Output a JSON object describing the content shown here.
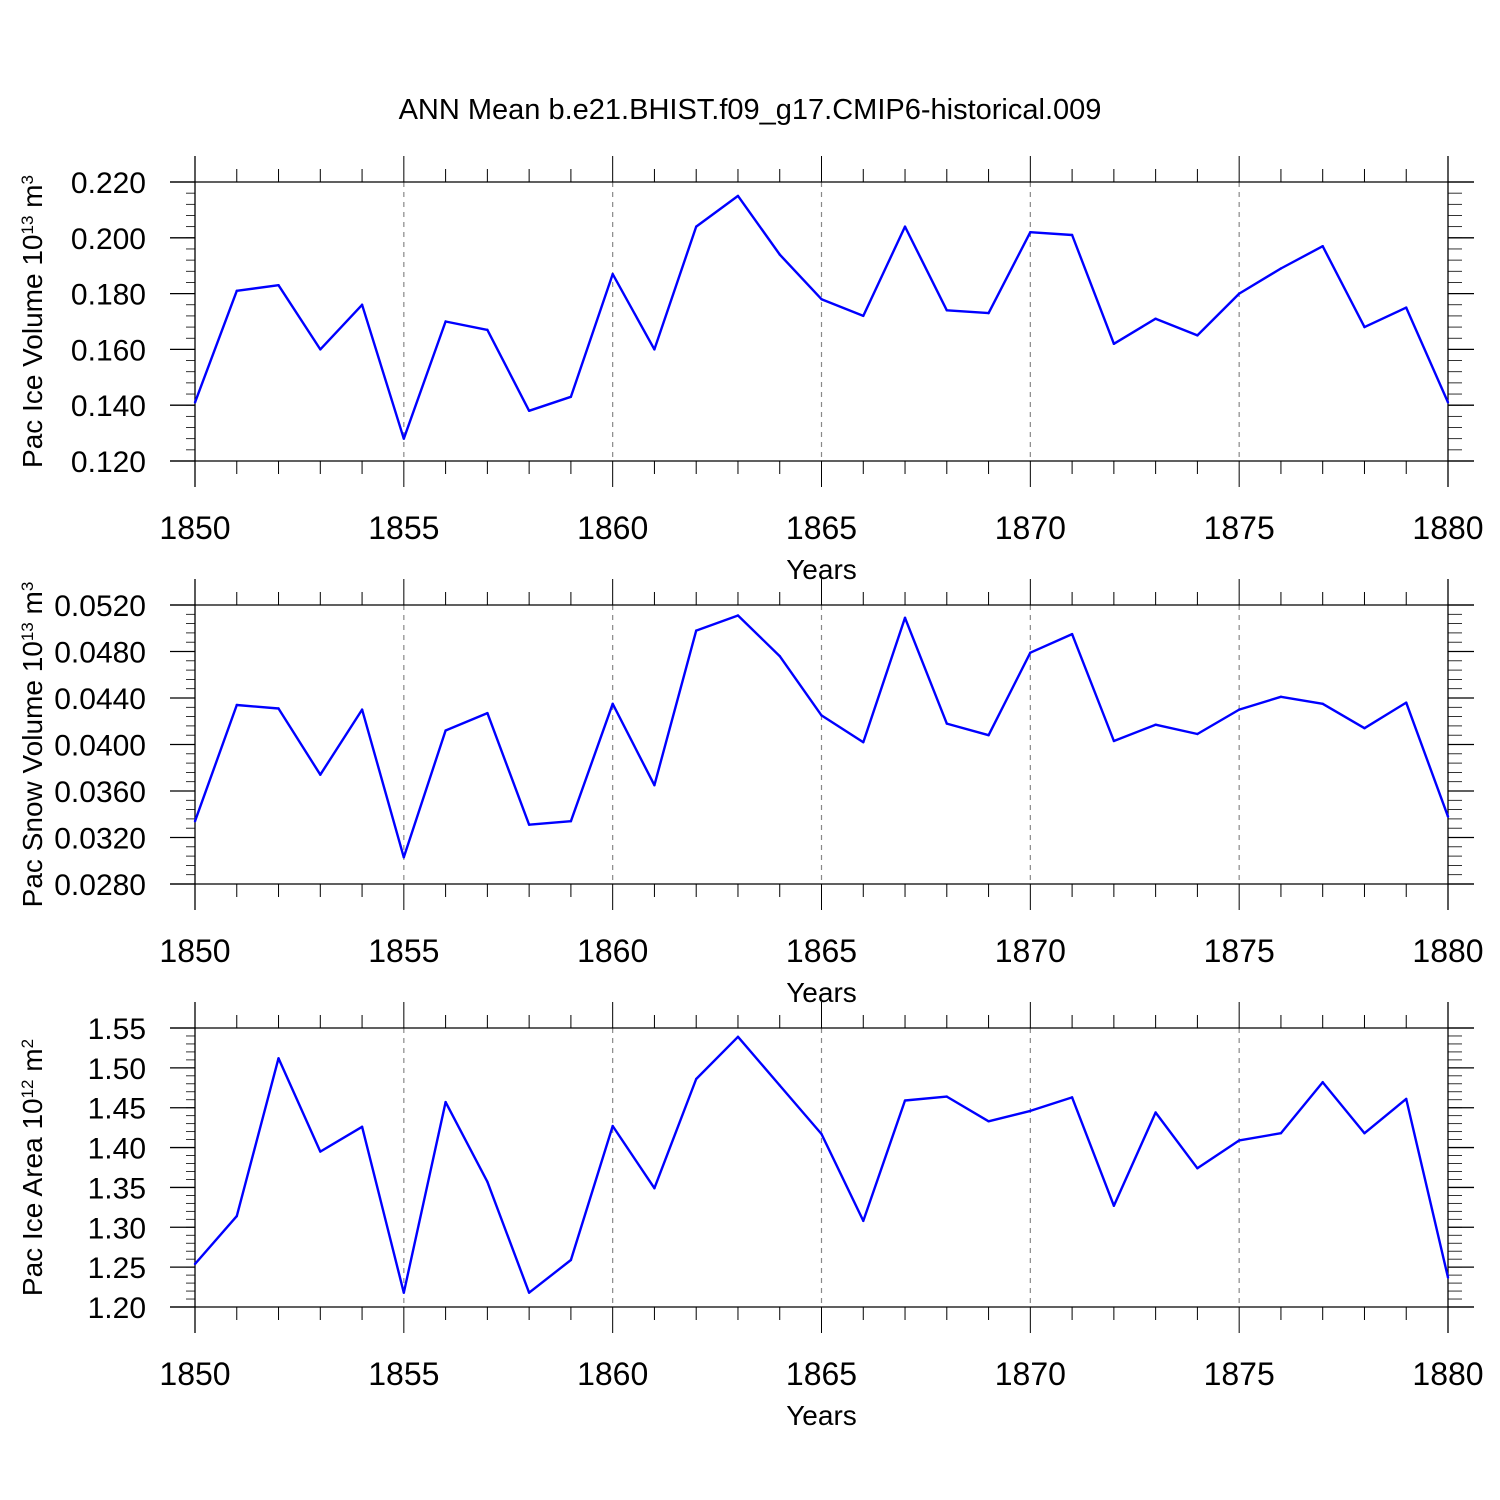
{
  "title": "ANN Mean b.e21.BHIST.f09_g17.CMIP6-historical.009",
  "colors": {
    "line": "#0000ff",
    "axis": "#000000",
    "grid": "#888888"
  },
  "chart_data": [
    {
      "type": "line",
      "series_name": "Pac Ice Volume",
      "ylabel": {
        "text": "Pac Ice Volume 10",
        "exp": "13",
        "unit": " m",
        "unit_exp": "3"
      },
      "xlabel": "Years",
      "xlim": [
        1850,
        1880
      ],
      "ylim": [
        0.12,
        0.22
      ],
      "yticks": [
        0.12,
        0.14,
        0.16,
        0.18,
        0.2,
        0.22
      ],
      "ytick_labels": [
        "0.120",
        "0.140",
        "0.160",
        "0.180",
        "0.200",
        "0.220"
      ],
      "yminor_step": 0.004,
      "xticks": [
        1850,
        1855,
        1860,
        1865,
        1870,
        1875,
        1880
      ],
      "xtick_labels": [
        "1850",
        "1855",
        "1860",
        "1865",
        "1870",
        "1875",
        "1880"
      ],
      "x": [
        1850,
        1851,
        1852,
        1853,
        1854,
        1855,
        1856,
        1857,
        1858,
        1859,
        1860,
        1861,
        1862,
        1863,
        1864,
        1865,
        1866,
        1867,
        1868,
        1869,
        1870,
        1871,
        1872,
        1873,
        1874,
        1875,
        1876,
        1877,
        1878,
        1879,
        1880
      ],
      "values": [
        0.141,
        0.181,
        0.183,
        0.16,
        0.176,
        0.128,
        0.17,
        0.167,
        0.138,
        0.143,
        0.187,
        0.16,
        0.204,
        0.215,
        0.194,
        0.178,
        0.172,
        0.204,
        0.174,
        0.173,
        0.202,
        0.201,
        0.162,
        0.171,
        0.165,
        0.18,
        0.189,
        0.197,
        0.168,
        0.175,
        0.141
      ]
    },
    {
      "type": "line",
      "series_name": "Pac Snow Volume",
      "ylabel": {
        "text": "Pac Snow Volume 10",
        "exp": "13",
        "unit": " m",
        "unit_exp": "3"
      },
      "xlabel": "Years",
      "xlim": [
        1850,
        1880
      ],
      "ylim": [
        0.028,
        0.052
      ],
      "yticks": [
        0.028,
        0.032,
        0.036,
        0.04,
        0.044,
        0.048,
        0.052
      ],
      "ytick_labels": [
        "0.0280",
        "0.0320",
        "0.0360",
        "0.0400",
        "0.0440",
        "0.0480",
        "0.0520"
      ],
      "yminor_step": 0.0008,
      "xticks": [
        1850,
        1855,
        1860,
        1865,
        1870,
        1875,
        1880
      ],
      "xtick_labels": [
        "1850",
        "1855",
        "1860",
        "1865",
        "1870",
        "1875",
        "1880"
      ],
      "x": [
        1850,
        1851,
        1852,
        1853,
        1854,
        1855,
        1856,
        1857,
        1858,
        1859,
        1860,
        1861,
        1862,
        1863,
        1864,
        1865,
        1866,
        1867,
        1868,
        1869,
        1870,
        1871,
        1872,
        1873,
        1874,
        1875,
        1876,
        1877,
        1878,
        1879,
        1880
      ],
      "values": [
        0.0334,
        0.0434,
        0.0431,
        0.0374,
        0.043,
        0.0303,
        0.0412,
        0.0427,
        0.0331,
        0.0334,
        0.0435,
        0.0365,
        0.0498,
        0.0511,
        0.0476,
        0.0425,
        0.0402,
        0.0509,
        0.0418,
        0.0408,
        0.0479,
        0.0495,
        0.0403,
        0.0417,
        0.0409,
        0.043,
        0.0441,
        0.0435,
        0.0414,
        0.0436,
        0.0338
      ]
    },
    {
      "type": "line",
      "series_name": "Pac Ice Area",
      "ylabel": {
        "text": "Pac Ice Area 10",
        "exp": "12",
        "unit": " m",
        "unit_exp": "2"
      },
      "xlabel": "Years",
      "xlim": [
        1850,
        1880
      ],
      "ylim": [
        1.2,
        1.55
      ],
      "yticks": [
        1.2,
        1.25,
        1.3,
        1.35,
        1.4,
        1.45,
        1.5,
        1.55
      ],
      "ytick_labels": [
        "1.20",
        "1.25",
        "1.30",
        "1.35",
        "1.40",
        "1.45",
        "1.50",
        "1.55"
      ],
      "yminor_step": 0.01,
      "xticks": [
        1850,
        1855,
        1860,
        1865,
        1870,
        1875,
        1880
      ],
      "xtick_labels": [
        "1850",
        "1855",
        "1860",
        "1865",
        "1870",
        "1875",
        "1880"
      ],
      "x": [
        1850,
        1851,
        1852,
        1853,
        1854,
        1855,
        1856,
        1857,
        1858,
        1859,
        1860,
        1861,
        1862,
        1863,
        1864,
        1865,
        1866,
        1867,
        1868,
        1869,
        1870,
        1871,
        1872,
        1873,
        1874,
        1875,
        1876,
        1877,
        1878,
        1879,
        1880
      ],
      "values": [
        1.254,
        1.314,
        1.512,
        1.395,
        1.426,
        1.218,
        1.457,
        1.357,
        1.218,
        1.259,
        1.427,
        1.349,
        1.486,
        1.539,
        1.478,
        1.417,
        1.308,
        1.459,
        1.464,
        1.433,
        1.446,
        1.463,
        1.327,
        1.444,
        1.374,
        1.409,
        1.418,
        1.482,
        1.418,
        1.461,
        1.237
      ]
    }
  ]
}
